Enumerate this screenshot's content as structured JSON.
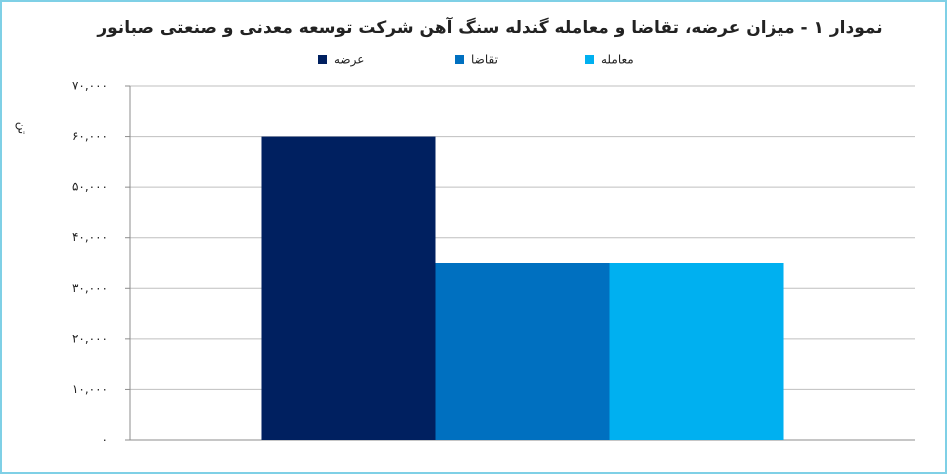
{
  "chart_data": {
    "type": "bar",
    "title": "نمودار ۱ - میزان عرضه، تقاضا و معامله گندله سنگ آهن شرکت توسعه معدنی و صنعتی صبانور",
    "y_label": "تن",
    "categories": [
      null
    ],
    "series": [
      {
        "name": "عرضه",
        "color": "#002060",
        "values": [
          60000
        ]
      },
      {
        "name": "تقاضا",
        "color": "#0070c0",
        "values": [
          35000
        ]
      },
      {
        "name": "معامله",
        "color": "#00b0f0",
        "values": [
          35000
        ]
      }
    ],
    "ylim": [
      0,
      70000
    ],
    "yticks": [
      {
        "value": 0,
        "label": "۰"
      },
      {
        "value": 10000,
        "label": "۱۰,۰۰۰"
      },
      {
        "value": 20000,
        "label": "۲۰,۰۰۰"
      },
      {
        "value": 30000,
        "label": "۳۰,۰۰۰"
      },
      {
        "value": 40000,
        "label": "۴۰,۰۰۰"
      },
      {
        "value": 50000,
        "label": "۵۰,۰۰۰"
      },
      {
        "value": 60000,
        "label": "۶۰,۰۰۰"
      },
      {
        "value": 70000,
        "label": "۷۰,۰۰۰"
      }
    ],
    "grid": true,
    "legend": "top"
  }
}
